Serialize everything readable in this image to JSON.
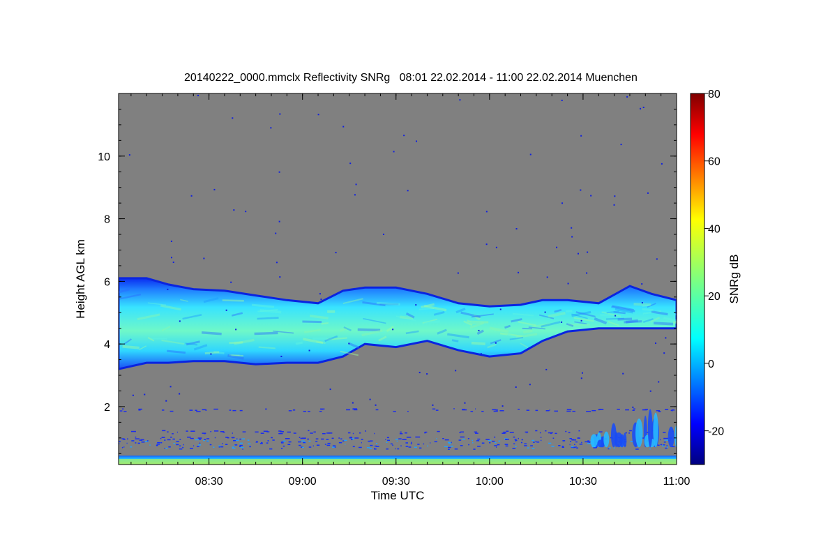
{
  "chart_data": {
    "type": "heatmap",
    "title": "20140222_0000.mmclx Reflectivity SNRg   08:01 22.02.2014 - 11:00 22.02.2014 Muenchen",
    "xlabel": "Time UTC",
    "ylabel": "Height AGL km",
    "x_range_minutes_utc": [
      481,
      660
    ],
    "y_range_km": [
      0.15,
      12
    ],
    "x_ticks": [
      {
        "minute": 510,
        "label": "08:30"
      },
      {
        "minute": 540,
        "label": "09:00"
      },
      {
        "minute": 570,
        "label": "09:30"
      },
      {
        "minute": 600,
        "label": "10:00"
      },
      {
        "minute": 630,
        "label": "10:30"
      },
      {
        "minute": 660,
        "label": "11:00"
      }
    ],
    "x_minor_tick_step_minutes": 5,
    "y_ticks": [
      {
        "value": 2,
        "label": "2"
      },
      {
        "value": 4,
        "label": "4"
      },
      {
        "value": 6,
        "label": "6"
      },
      {
        "value": 8,
        "label": "8"
      },
      {
        "value": 10,
        "label": "10"
      }
    ],
    "y_minor_tick_step_km": 0.5,
    "colorbar": {
      "label": "SNRg dB",
      "range_db": [
        -30,
        80
      ],
      "ticks": [
        {
          "value": -20,
          "label": "-20"
        },
        {
          "value": 0,
          "label": "0"
        },
        {
          "value": 20,
          "label": "20"
        },
        {
          "value": 40,
          "label": "40"
        },
        {
          "value": 60,
          "label": "60"
        },
        {
          "value": 80,
          "label": "80"
        }
      ],
      "colormap": "jet"
    },
    "no_data_color": "#808080",
    "cloud_layer": {
      "description": "main cloud band",
      "boundaries": [
        {
          "minute": 481,
          "base_km": 3.2,
          "top_km": 6.1
        },
        {
          "minute": 490,
          "base_km": 3.4,
          "top_km": 6.1
        },
        {
          "minute": 497,
          "base_km": 3.4,
          "top_km": 5.9
        },
        {
          "minute": 505,
          "base_km": 3.45,
          "top_km": 5.75
        },
        {
          "minute": 515,
          "base_km": 3.45,
          "top_km": 5.7
        },
        {
          "minute": 525,
          "base_km": 3.35,
          "top_km": 5.55
        },
        {
          "minute": 535,
          "base_km": 3.4,
          "top_km": 5.4
        },
        {
          "minute": 545,
          "base_km": 3.4,
          "top_km": 5.3
        },
        {
          "minute": 553,
          "base_km": 3.6,
          "top_km": 5.7
        },
        {
          "minute": 560,
          "base_km": 4.0,
          "top_km": 5.8
        },
        {
          "minute": 570,
          "base_km": 3.9,
          "top_km": 5.8
        },
        {
          "minute": 580,
          "base_km": 4.1,
          "top_km": 5.6
        },
        {
          "minute": 590,
          "base_km": 3.8,
          "top_km": 5.3
        },
        {
          "minute": 600,
          "base_km": 3.6,
          "top_km": 5.2
        },
        {
          "minute": 610,
          "base_km": 3.7,
          "top_km": 5.25
        },
        {
          "minute": 617,
          "base_km": 4.1,
          "top_km": 5.4
        },
        {
          "minute": 625,
          "base_km": 4.4,
          "top_km": 5.4
        },
        {
          "minute": 635,
          "base_km": 4.5,
          "top_km": 5.3
        },
        {
          "minute": 645,
          "base_km": 4.5,
          "top_km": 5.85
        },
        {
          "minute": 652,
          "base_km": 4.5,
          "top_km": 5.6
        },
        {
          "minute": 660,
          "base_km": 4.5,
          "top_km": 5.4
        }
      ],
      "typical_snr_db": [
        0,
        20
      ]
    },
    "boundary_layer": {
      "top_km": 0.7,
      "scattered_echo_heights_km": [
        1.0,
        1.2,
        1.9
      ],
      "late_convection_start_minute": 630,
      "late_convection_max_km": 2.2
    }
  }
}
